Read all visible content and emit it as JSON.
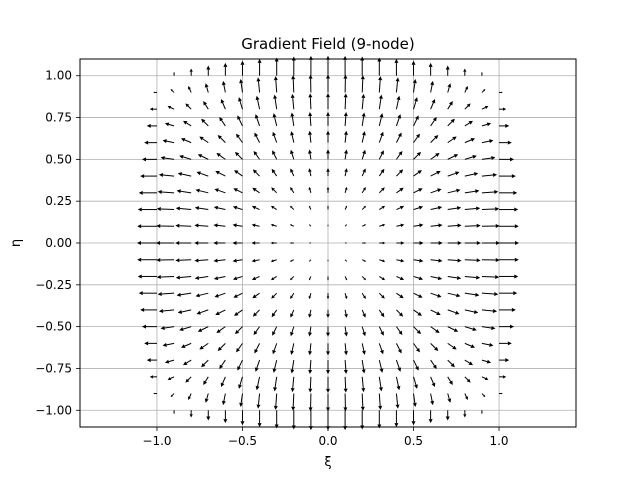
{
  "chart_data": {
    "type": "quiver",
    "title": "Gradient Field (9-node)",
    "xlabel": "ξ",
    "ylabel": "η",
    "xlim": [
      -1.45,
      1.45
    ],
    "ylim": [
      -1.1,
      1.1
    ],
    "xticks": [
      -1.0,
      -0.5,
      0.0,
      0.5,
      1.0
    ],
    "xtick_labels": [
      "−1.0",
      "−0.5",
      "0.0",
      "0.5",
      "1.0"
    ],
    "yticks": [
      -1.0,
      -0.75,
      -0.5,
      -0.25,
      0.0,
      0.25,
      0.5,
      0.75,
      1.0
    ],
    "ytick_labels": [
      "−1.00",
      "−0.75",
      "−0.50",
      "−0.25",
      "0.00",
      "0.25",
      "0.50",
      "0.75",
      "1.00"
    ],
    "grid": true,
    "field": {
      "expression": "grad of (xi^2 + eta^2 - xi^2*eta^2)",
      "xi_range": [
        -1.0,
        1.0
      ],
      "eta_range": [
        -1.0,
        1.0
      ],
      "samples_per_axis": 21
    },
    "arrow_color": "#000000"
  }
}
